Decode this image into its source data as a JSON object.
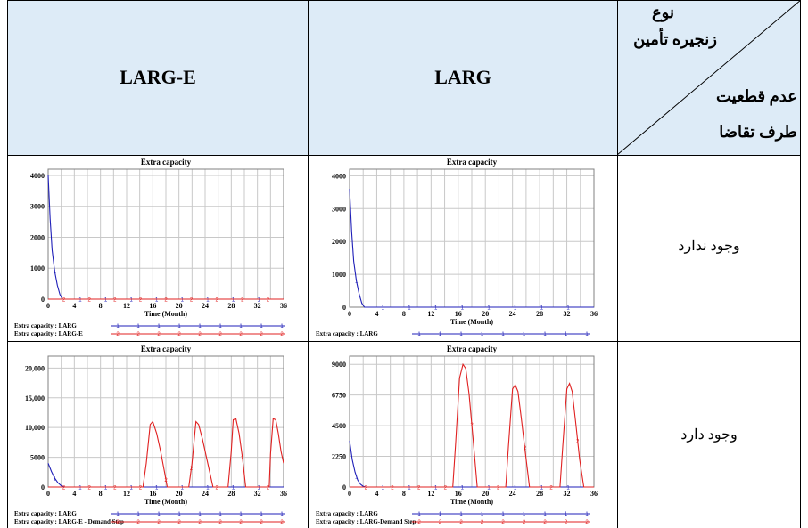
{
  "table": {
    "header": {
      "col_larg_e": "LARG-E",
      "col_larg": "LARG",
      "corner_top": "نوع",
      "corner_line2": "زنجیره تأمین",
      "corner_line3": "عدم قطعیت",
      "corner_line4": "طرف تقاضا"
    },
    "rows": [
      {
        "label": "وجود ندارد"
      },
      {
        "label": "وجود دارد"
      }
    ],
    "colors": {
      "header_bg": "#DDEBF7",
      "larg_series": "#1F1FB8",
      "larg_e_series": "#E02020"
    }
  },
  "chart_data": [
    {
      "type": "line",
      "title": "Extra capacity",
      "xlabel": "Time (Month)",
      "x_ticks": [
        "0",
        "4",
        "8",
        "12",
        "16",
        "20",
        "24",
        "28",
        "32",
        "36"
      ],
      "y_ticks": [
        "0",
        "1000",
        "2000",
        "3000",
        "4000"
      ],
      "xlim": [
        0,
        36
      ],
      "ylim": [
        0,
        4200
      ],
      "legend": "bottom-left",
      "series": [
        {
          "name": "Extra capacity : LARG",
          "marker": "1",
          "color": "#1F1FB8",
          "x": [
            0,
            0.3,
            0.6,
            1,
            1.4,
            1.8,
            2.2,
            36
          ],
          "y": [
            4000,
            2600,
            1600,
            900,
            450,
            150,
            0,
            0
          ]
        },
        {
          "name": "Extra capacity : LARG-E",
          "marker": "2",
          "color": "#E02020",
          "x": [
            0,
            36
          ],
          "y": [
            0,
            0
          ]
        }
      ]
    },
    {
      "type": "line",
      "title": "Extra capacity",
      "xlabel": "Time (Month)",
      "x_ticks": [
        "0",
        "4",
        "8",
        "12",
        "16",
        "20",
        "24",
        "28",
        "32",
        "36"
      ],
      "y_ticks": [
        "0",
        "1000",
        "2000",
        "3000",
        "4000"
      ],
      "xlim": [
        0,
        36
      ],
      "ylim": [
        0,
        4200
      ],
      "legend": "bottom-left",
      "series": [
        {
          "name": "Extra capacity : LARG",
          "marker": "1",
          "color": "#1F1FB8",
          "x": [
            0,
            0.3,
            0.6,
            1,
            1.4,
            1.8,
            2.2,
            36
          ],
          "y": [
            3600,
            2300,
            1400,
            800,
            400,
            120,
            0,
            0
          ]
        }
      ]
    },
    {
      "type": "line",
      "title": "Extra capacity",
      "xlabel": "Time (Month)",
      "x_ticks": [
        "0",
        "4",
        "8",
        "12",
        "16",
        "20",
        "24",
        "28",
        "32",
        "36"
      ],
      "y_ticks": [
        "0",
        "5000",
        "10,000",
        "15,000",
        "20,000"
      ],
      "xlim": [
        0,
        36
      ],
      "ylim": [
        0,
        22000
      ],
      "legend": "bottom-left",
      "series": [
        {
          "name": "Extra capacity : LARG",
          "marker": "1",
          "color": "#1F1FB8",
          "x": [
            0,
            0.5,
            1,
            1.5,
            2,
            2.5,
            36
          ],
          "y": [
            4000,
            2600,
            1500,
            700,
            200,
            0,
            0
          ]
        },
        {
          "name": "Extra capacity : LARG-E - Demand Step",
          "marker": "2",
          "color": "#E02020",
          "x": [
            0,
            14.5,
            15,
            15.6,
            16,
            16.6,
            17.2,
            17.8,
            18.2,
            21.5,
            22,
            22.6,
            23,
            23.6,
            24.2,
            24.8,
            25.2,
            27.5,
            28,
            28.3,
            28.7,
            29.2,
            29.7,
            30.2,
            33.8,
            34,
            34.4,
            34.8,
            35.2,
            35.6,
            36
          ],
          "y": [
            0,
            0,
            4000,
            10500,
            11000,
            9000,
            6000,
            2500,
            0,
            0,
            4000,
            11000,
            10500,
            8000,
            5000,
            2000,
            0,
            0,
            6000,
            11300,
            11500,
            9000,
            5000,
            0,
            0,
            5500,
            11500,
            11300,
            9000,
            6000,
            4000
          ]
        }
      ]
    },
    {
      "type": "line",
      "title": "Extra capacity",
      "xlabel": "Time (Month)",
      "x_ticks": [
        "0",
        "4",
        "8",
        "12",
        "16",
        "20",
        "24",
        "28",
        "32",
        "36"
      ],
      "y_ticks": [
        "0",
        "2250",
        "4500",
        "6750",
        "9000"
      ],
      "xlim": [
        0,
        36
      ],
      "ylim": [
        0,
        9600
      ],
      "legend": "bottom-left",
      "series": [
        {
          "name": "Extra capacity : LARG",
          "marker": "1",
          "color": "#1F1FB8",
          "x": [
            0,
            0.4,
            0.8,
            1.2,
            1.6,
            2,
            2.4,
            36
          ],
          "y": [
            3400,
            2000,
            1100,
            500,
            200,
            50,
            0,
            0
          ]
        },
        {
          "name": "Extra capacity : LARG-Demand Step",
          "marker": "2",
          "color": "#E02020",
          "x": [
            0,
            15.2,
            15.6,
            16.2,
            16.7,
            17.1,
            17.6,
            18.2,
            18.8,
            23,
            23.4,
            24,
            24.4,
            24.8,
            25.3,
            25.9,
            26.5,
            31,
            31.4,
            32,
            32.4,
            32.8,
            33.3,
            33.9,
            34.5,
            36
          ],
          "y": [
            0,
            0,
            3000,
            8000,
            9000,
            8700,
            6800,
            3500,
            0,
            0,
            3000,
            7200,
            7500,
            7000,
            5000,
            2500,
            0,
            0,
            3000,
            7200,
            7600,
            7000,
            4800,
            2000,
            0,
            0
          ]
        }
      ]
    }
  ]
}
